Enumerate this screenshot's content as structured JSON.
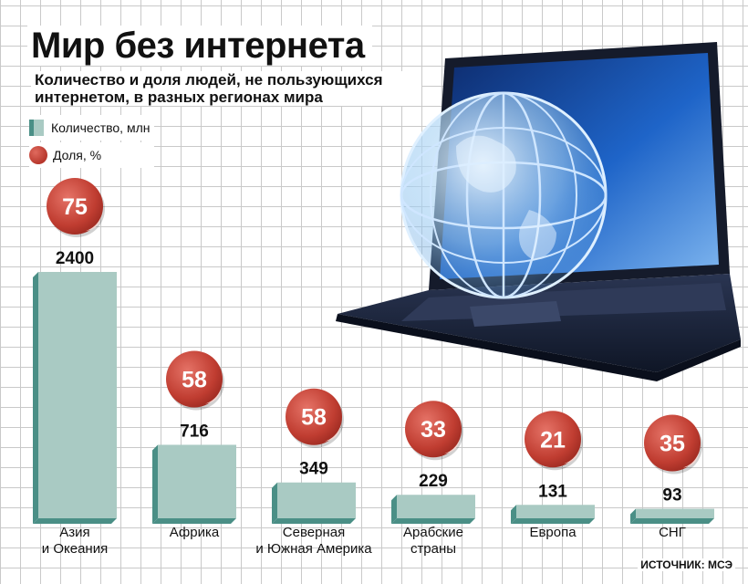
{
  "title": "Мир без интернета",
  "subtitle": "Количество и доля людей, не пользующихся интернетом, в разных регионах мира",
  "legend": {
    "count_label": "Количество, млн",
    "share_label": "Доля, %"
  },
  "source": "ИСТОЧНИК: МСЭ",
  "colors": {
    "bar_front": "#a9cac3",
    "bar_side": "#4a8f86",
    "badge": "#c9463a",
    "text": "#111111"
  },
  "illustration": "laptop-with-globe",
  "chart_data": {
    "type": "bar",
    "title": "Мир без интернета",
    "categories": [
      [
        "Азия",
        "и Океания"
      ],
      [
        "Африка"
      ],
      [
        "Северная",
        "и Южная Америка"
      ],
      [
        "Арабские",
        "страны"
      ],
      [
        "Европа"
      ],
      [
        "СНГ"
      ]
    ],
    "series": [
      {
        "name": "Количество, млн",
        "values": [
          2400,
          716,
          349,
          229,
          131,
          93
        ]
      },
      {
        "name": "Доля, %",
        "values": [
          75,
          58,
          58,
          33,
          21,
          35
        ]
      }
    ],
    "ylim": [
      0,
      2400
    ],
    "grid": true,
    "legend_position": "top-left"
  }
}
